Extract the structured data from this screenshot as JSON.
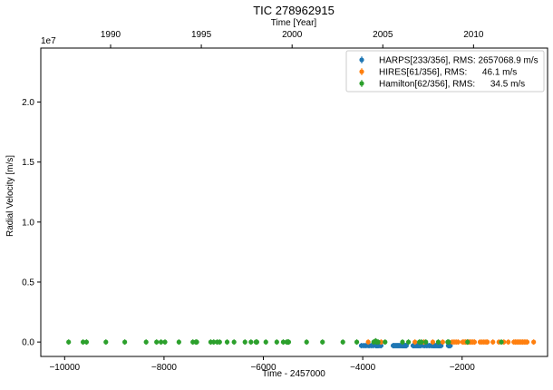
{
  "chart_data": {
    "type": "scatter",
    "title": "TIC 278962915",
    "xlabel": "Time - 2457000",
    "ylabel": "Radial Velocity [m/s]",
    "top_xlabel": "Time [Year]",
    "y_multiplier": "1e7",
    "xlim": [
      -10480,
      -280
    ],
    "ylim": [
      -0.12,
      2.45
    ],
    "x_ticks": [
      -10000,
      -8000,
      -6000,
      -4000,
      -2000
    ],
    "x_tick_labels": [
      "−10000",
      "−8000",
      "−6000",
      "−4000",
      "−2000"
    ],
    "y_ticks": [
      0.0,
      0.5,
      1.0,
      1.5,
      2.0
    ],
    "y_tick_labels": [
      "0.0",
      "0.5",
      "1.0",
      "1.5",
      "2.0"
    ],
    "top_ticks": [
      {
        "x": -9075,
        "label": "1990"
      },
      {
        "x": -7249,
        "label": "1995"
      },
      {
        "x": -5422,
        "label": "2000"
      },
      {
        "x": -3596,
        "label": "2005"
      },
      {
        "x": -1770,
        "label": "2010"
      }
    ],
    "legend_position": "top-right",
    "series": [
      {
        "name": "HARPS[233/356], RMS: 2657068.9 m/s",
        "color": "#1f77b4",
        "x": [
          -4030,
          -3995,
          -3960,
          -3930,
          -3890,
          -3860,
          -3825,
          -3790,
          -3760,
          -3740,
          -3720,
          -3700,
          -3680,
          -3655,
          -3630,
          -3390,
          -3370,
          -3350,
          -3330,
          -3310,
          -3290,
          -3270,
          -3250,
          -3230,
          -3210,
          -3195,
          -3180,
          -3165,
          -3150,
          -3135,
          -3120,
          -2990,
          -2970,
          -2950,
          -2930,
          -2910,
          -2890,
          -2870,
          -2850,
          -2830,
          -2780,
          -2750,
          -2720,
          -2690,
          -2660,
          -2630,
          -2600,
          -2580,
          -2560,
          -2540,
          -2520,
          -2500,
          -2480,
          -2460,
          -2440,
          -2420,
          -2280,
          -2265,
          -2250,
          -2235
        ],
        "y": [
          -0.03,
          -0.03,
          -0.03,
          -0.03,
          -0.03,
          -0.03,
          -0.03,
          -0.03,
          0.0,
          -0.03,
          -0.03,
          -0.03,
          -0.03,
          -0.03,
          -0.03,
          -0.03,
          -0.03,
          -0.03,
          -0.03,
          -0.03,
          -0.03,
          -0.03,
          -0.03,
          -0.03,
          -0.03,
          -0.03,
          -0.03,
          -0.03,
          -0.03,
          -0.03,
          -0.03,
          -0.03,
          -0.03,
          -0.03,
          -0.03,
          -0.03,
          -0.03,
          -0.03,
          -0.03,
          -0.03,
          -0.03,
          -0.03,
          -0.03,
          -0.03,
          -0.03,
          -0.03,
          -0.03,
          -0.03,
          -0.03,
          -0.03,
          -0.03,
          -0.03,
          -0.03,
          -0.03,
          -0.03,
          -0.03,
          -0.03,
          -0.03,
          -0.03,
          -0.03
        ]
      },
      {
        "name": "HIRES[61/356], RMS:      46.1 m/s",
        "color": "#ff7f0e",
        "x": [
          -3890,
          -3630,
          -2950,
          -2770,
          -2590,
          -2390,
          -2200,
          -2160,
          -2120,
          -2080,
          -1990,
          -1960,
          -1930,
          -1900,
          -1870,
          -1840,
          -1810,
          -1780,
          -1750,
          -1640,
          -1600,
          -1560,
          -1520,
          -1490,
          -1380,
          -1260,
          -1160,
          -1070,
          -960,
          -930,
          -900,
          -870,
          -840,
          -810,
          -780,
          -750,
          -720,
          -690,
          -560
        ],
        "y": [
          0,
          0,
          0,
          0,
          0,
          0,
          0,
          0,
          0,
          0,
          0,
          0,
          0,
          0,
          0,
          0,
          0,
          0,
          0,
          0,
          0,
          0,
          0,
          0,
          0,
          0,
          0,
          0,
          0,
          0,
          0,
          0,
          0,
          0,
          0,
          0,
          0,
          0,
          0
        ]
      },
      {
        "name": "Hamilton[62/356], RMS:      34.5 m/s",
        "color": "#2ca02c",
        "x": [
          -9920,
          -9630,
          -9560,
          -9170,
          -8790,
          -8360,
          -8150,
          -8060,
          -7980,
          -7700,
          -7420,
          -7360,
          -7340,
          -7060,
          -7000,
          -6930,
          -6880,
          -6730,
          -6590,
          -6370,
          -6250,
          -6150,
          -6130,
          -5950,
          -5730,
          -5600,
          -5530,
          -5510,
          -5490,
          -5130,
          -4810,
          -4400,
          -4120,
          -3780,
          -3740,
          -3720,
          -3690,
          -3550,
          -3200,
          -3080,
          -2860,
          -2820,
          -2730,
          -2480,
          -2290,
          -2270,
          -1890,
          -1210
        ],
        "y": [
          0,
          0,
          0,
          0,
          0,
          0,
          0,
          0,
          0,
          0,
          0,
          0,
          0,
          0,
          0,
          0,
          0,
          0,
          0,
          0,
          0,
          0,
          0,
          0,
          0,
          0,
          0,
          0,
          0,
          0,
          0,
          0,
          0,
          0,
          0.01,
          0,
          0,
          0,
          0,
          0,
          0,
          0,
          0,
          0,
          0,
          0,
          0,
          0
        ]
      }
    ]
  }
}
